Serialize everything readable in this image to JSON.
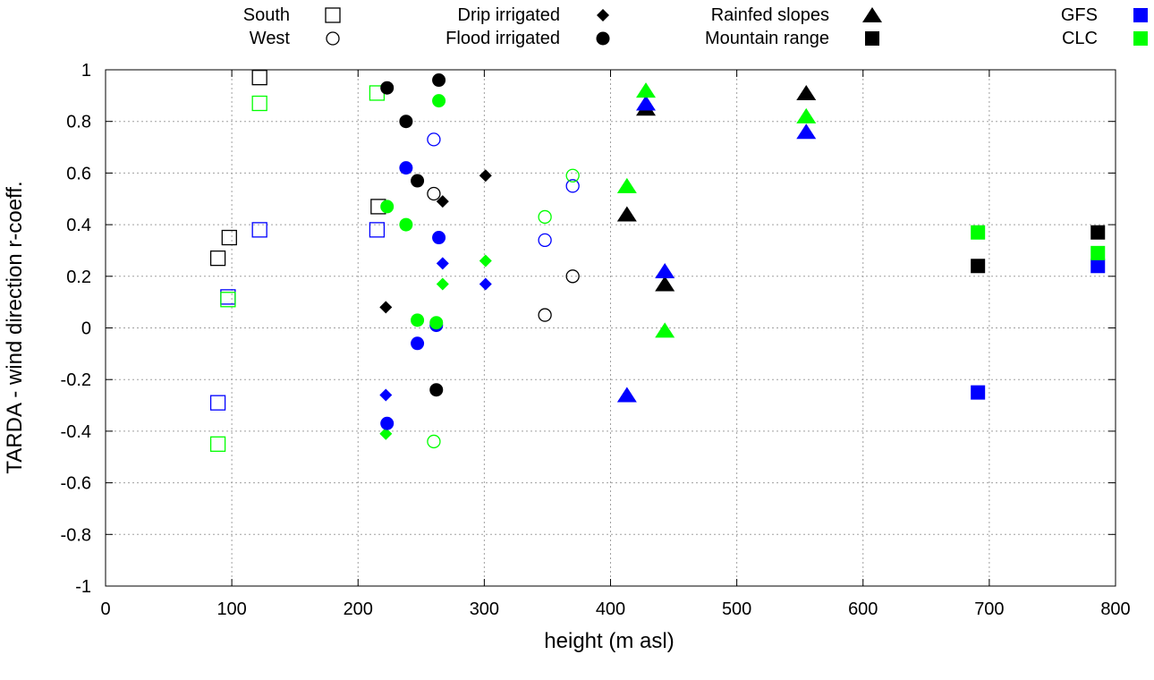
{
  "chart_data": {
    "type": "scatter",
    "title": "",
    "xlabel": "height (m asl)",
    "ylabel": "TARDA - wind direction r-coeff.",
    "xlim": [
      0,
      800
    ],
    "ylim": [
      -1,
      1
    ],
    "grid": true,
    "xticks": [
      0,
      100,
      200,
      300,
      400,
      500,
      600,
      700,
      800
    ],
    "xtick_labels": [
      "0",
      "100",
      "200",
      "300",
      "400",
      "500",
      "600",
      "700",
      "800"
    ],
    "yticks": [
      -1,
      -0.8,
      -0.6,
      -0.4,
      -0.2,
      0,
      0.2,
      0.4,
      0.6,
      0.8,
      1
    ],
    "ytick_labels": [
      "-1",
      "-0.8",
      "-0.6",
      "-0.4",
      "-0.2",
      "0",
      "0.2",
      "0.4",
      "0.6",
      "0.8",
      "1"
    ],
    "colors": {
      "Obs": "#000000",
      "GFS": "#0000ff",
      "CLC": "#00ff00"
    },
    "legend": [
      {
        "label": "South",
        "marker": "square-open",
        "color": "#000000"
      },
      {
        "label": "West",
        "marker": "circle-open",
        "color": "#000000"
      },
      {
        "label": "Drip irrigated",
        "marker": "diamond",
        "color": "#000000"
      },
      {
        "label": "Flood irrigated",
        "marker": "circle",
        "color": "#000000"
      },
      {
        "label": "Rainfed slopes",
        "marker": "triangle",
        "color": "#000000"
      },
      {
        "label": "Mountain range",
        "marker": "square",
        "color": "#000000"
      },
      {
        "label": "GFS",
        "marker": "square",
        "color": "#0000ff"
      },
      {
        "label": "CLC",
        "marker": "square",
        "color": "#00ff00"
      }
    ],
    "series": [
      {
        "name": "South",
        "marker": "square-open",
        "color": "#000000",
        "points": [
          [
            89,
            0.27
          ],
          [
            98,
            0.35
          ],
          [
            122,
            0.97
          ],
          [
            216,
            0.47
          ]
        ]
      },
      {
        "name": "South GFS",
        "marker": "square-open",
        "color": "#0000ff",
        "points": [
          [
            89,
            -0.29
          ],
          [
            97,
            0.12
          ],
          [
            122,
            0.38
          ],
          [
            215,
            0.38
          ]
        ]
      },
      {
        "name": "South CLC",
        "marker": "square-open",
        "color": "#00ff00",
        "points": [
          [
            89,
            -0.45
          ],
          [
            97,
            0.11
          ],
          [
            122,
            0.87
          ],
          [
            215,
            0.91
          ]
        ]
      },
      {
        "name": "West",
        "marker": "circle-open",
        "color": "#000000",
        "points": [
          [
            260,
            0.52
          ],
          [
            348,
            0.05
          ],
          [
            370,
            0.2
          ]
        ]
      },
      {
        "name": "West GFS",
        "marker": "circle-open",
        "color": "#0000ff",
        "points": [
          [
            260,
            0.73
          ],
          [
            348,
            0.34
          ],
          [
            370,
            0.55
          ]
        ]
      },
      {
        "name": "West CLC",
        "marker": "circle-open",
        "color": "#00ff00",
        "points": [
          [
            260,
            -0.44
          ],
          [
            348,
            0.43
          ],
          [
            370,
            0.59
          ]
        ]
      },
      {
        "name": "Drip irrigated",
        "marker": "diamond",
        "color": "#000000",
        "points": [
          [
            222,
            0.08
          ],
          [
            267,
            0.49
          ],
          [
            301,
            0.59
          ]
        ]
      },
      {
        "name": "Drip irrigated GFS",
        "marker": "diamond",
        "color": "#0000ff",
        "points": [
          [
            222,
            -0.26
          ],
          [
            267,
            0.25
          ],
          [
            301,
            0.17
          ]
        ]
      },
      {
        "name": "Drip irrigated CLC",
        "marker": "diamond",
        "color": "#00ff00",
        "points": [
          [
            222,
            -0.41
          ],
          [
            267,
            0.17
          ],
          [
            301,
            0.26
          ]
        ]
      },
      {
        "name": "Flood irrigated",
        "marker": "circle",
        "color": "#000000",
        "points": [
          [
            223,
            0.93
          ],
          [
            238,
            0.8
          ],
          [
            247,
            0.57
          ],
          [
            262,
            -0.24
          ],
          [
            264,
            0.96
          ]
        ]
      },
      {
        "name": "Flood irrigated GFS",
        "marker": "circle",
        "color": "#0000ff",
        "points": [
          [
            223,
            -0.37
          ],
          [
            238,
            0.62
          ],
          [
            247,
            -0.06
          ],
          [
            262,
            0.01
          ],
          [
            264,
            0.35
          ]
        ]
      },
      {
        "name": "Flood irrigated CLC",
        "marker": "circle",
        "color": "#00ff00",
        "points": [
          [
            223,
            0.47
          ],
          [
            238,
            0.4
          ],
          [
            247,
            0.03
          ],
          [
            262,
            0.02
          ],
          [
            264,
            0.88
          ]
        ]
      },
      {
        "name": "Rainfed slopes",
        "marker": "triangle",
        "color": "#000000",
        "points": [
          [
            413,
            0.44
          ],
          [
            428,
            0.85
          ],
          [
            443,
            0.17
          ],
          [
            555,
            0.91
          ]
        ]
      },
      {
        "name": "Rainfed slopes GFS",
        "marker": "triangle",
        "color": "#0000ff",
        "points": [
          [
            413,
            -0.26
          ],
          [
            428,
            0.87
          ],
          [
            443,
            0.22
          ],
          [
            555,
            0.76
          ]
        ]
      },
      {
        "name": "Rainfed slopes CLC",
        "marker": "triangle",
        "color": "#00ff00",
        "points": [
          [
            413,
            0.55
          ],
          [
            428,
            0.92
          ],
          [
            443,
            -0.01
          ],
          [
            555,
            0.82
          ]
        ]
      },
      {
        "name": "Mountain range",
        "marker": "square",
        "color": "#000000",
        "points": [
          [
            691,
            0.24
          ],
          [
            786,
            0.37
          ]
        ]
      },
      {
        "name": "Mountain range GFS",
        "marker": "square",
        "color": "#0000ff",
        "points": [
          [
            691,
            -0.25
          ],
          [
            786,
            0.24
          ]
        ]
      },
      {
        "name": "Mountain range CLC",
        "marker": "square",
        "color": "#00ff00",
        "points": [
          [
            691,
            0.37
          ],
          [
            786,
            0.29
          ]
        ]
      }
    ]
  }
}
